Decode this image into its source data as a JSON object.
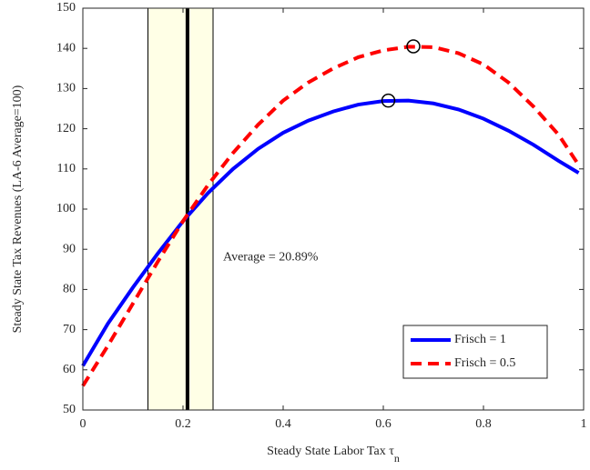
{
  "chart_data": {
    "type": "line",
    "xlabel": "Steady State Labor Tax τ",
    "xlabel_subscript": "n",
    "ylabel": "Steady State Tax Revenues (LA-6 Average=100)",
    "x": [
      0,
      0.05,
      0.1,
      0.15,
      0.2,
      0.25,
      0.3,
      0.35,
      0.4,
      0.45,
      0.5,
      0.55,
      0.6,
      0.65,
      0.7,
      0.75,
      0.8,
      0.85,
      0.9,
      0.95,
      0.99
    ],
    "series": [
      {
        "name": "Frisch = 1",
        "color": "#0000ff",
        "dash": false,
        "values": [
          61,
          71.5,
          80.5,
          89,
          97,
          104,
          110,
          115,
          119,
          122,
          124.3,
          126,
          126.9,
          127,
          126.3,
          124.8,
          122.5,
          119.5,
          116,
          112,
          109
        ],
        "marker": {
          "x": 0.61,
          "y": 127
        }
      },
      {
        "name": "Frisch = 0.5",
        "color": "#ff0000",
        "dash": true,
        "values": [
          56,
          66,
          76.5,
          87,
          97,
          106,
          114,
          121,
          127,
          131.5,
          135,
          137.8,
          139.5,
          140.4,
          140.3,
          138.8,
          136,
          131.5,
          125.5,
          118.5,
          111
        ],
        "marker": {
          "x": 0.66,
          "y": 140.5
        }
      }
    ],
    "shaded_band": [
      0.13,
      0.26
    ],
    "band_color": "#ffffe6",
    "average_line": 0.2089,
    "annotation": {
      "text": "Average = 20.89%",
      "x": 0.28,
      "y": 88
    },
    "xlim": [
      0,
      1
    ],
    "xticks": [
      0,
      0.2,
      0.4,
      0.6,
      0.8,
      1
    ],
    "ylim": [
      50,
      150
    ],
    "yticks": [
      50,
      60,
      70,
      80,
      90,
      100,
      110,
      120,
      130,
      140,
      150
    ],
    "legend": "lower right"
  }
}
